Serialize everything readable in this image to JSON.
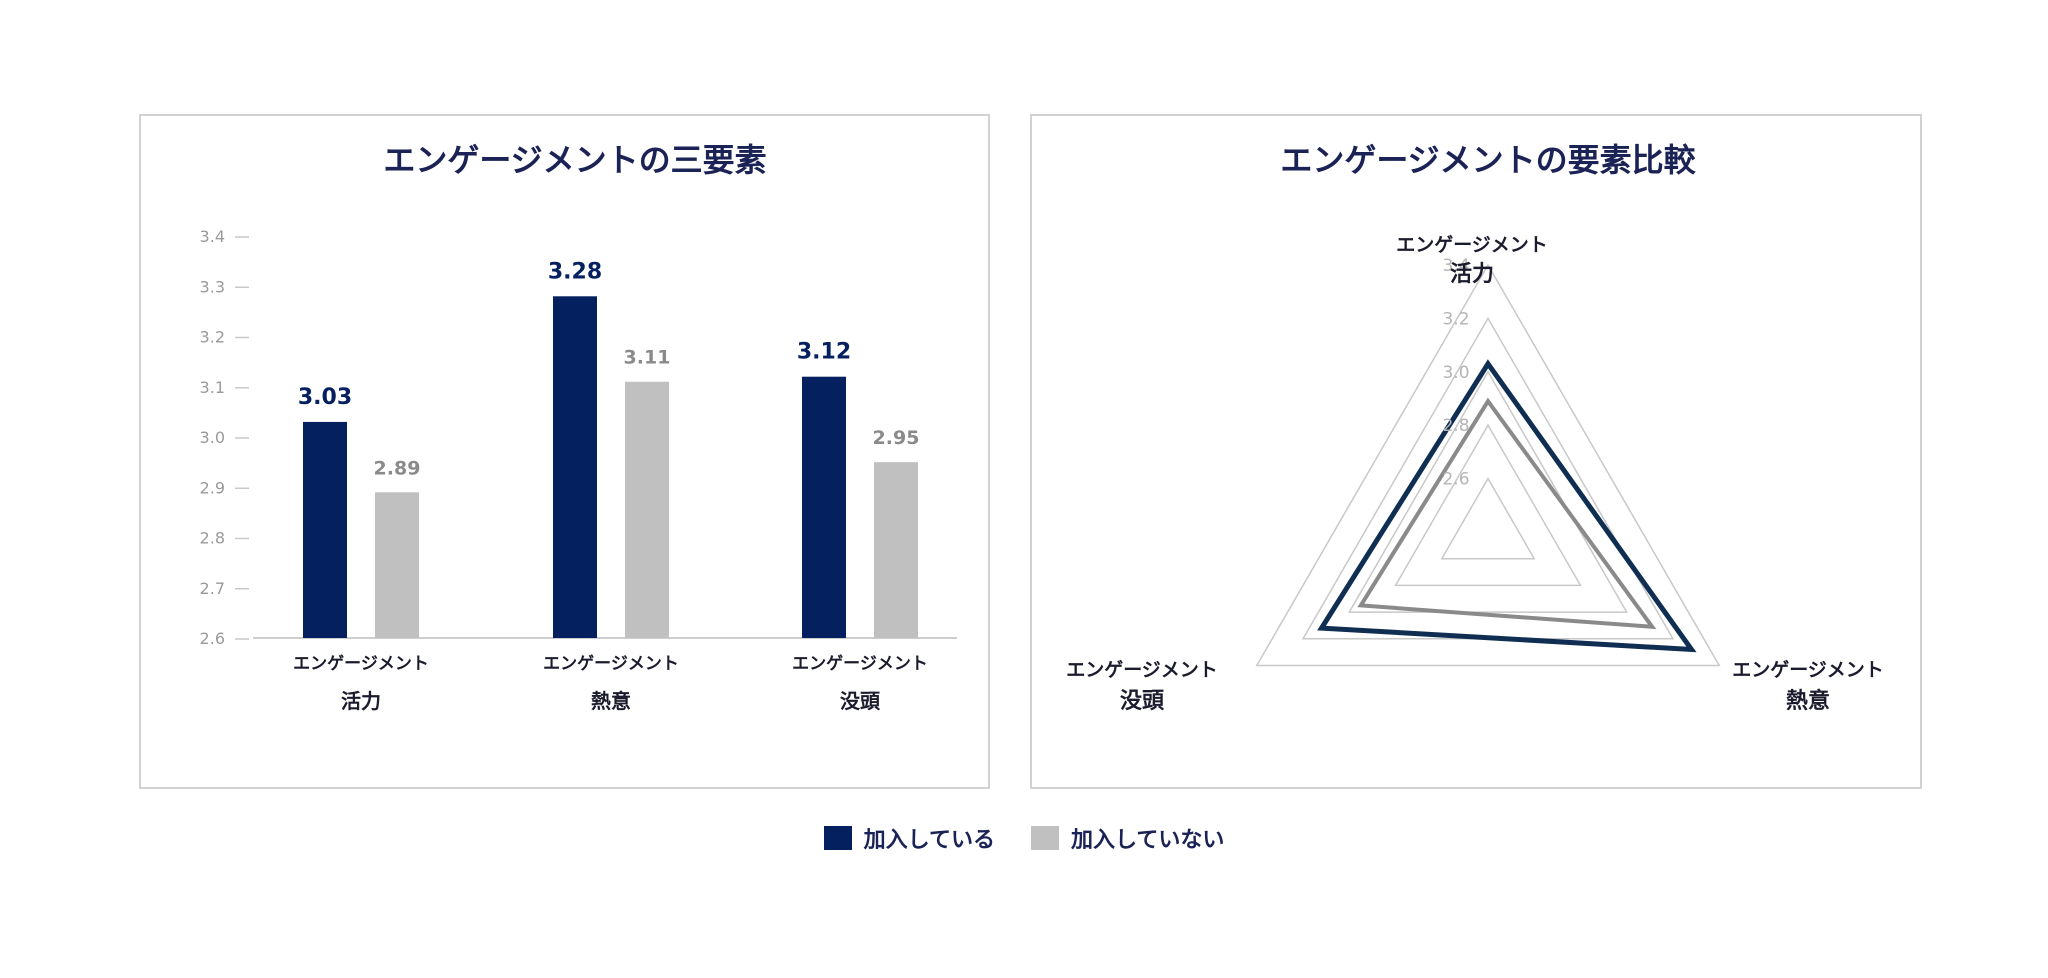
{
  "legend": {
    "series": [
      {
        "name": "加入している",
        "color": "#04205f"
      },
      {
        "name": "加入していない",
        "color": "#c0c0c0"
      }
    ]
  },
  "chart_data": [
    {
      "type": "bar",
      "title": "エンゲージメントの三要素",
      "categories": [
        {
          "line1": "エンゲージメント",
          "line2": "活力"
        },
        {
          "line1": "エンゲージメント",
          "line2": "熱意"
        },
        {
          "line1": "エンゲージメント",
          "line2": "没頭"
        }
      ],
      "series": [
        {
          "name": "加入している",
          "values": [
            3.03,
            3.28,
            3.12
          ],
          "labels": [
            "3.03",
            "3.28",
            "3.12"
          ],
          "color": "#04205f",
          "label_color": "#04205f"
        },
        {
          "name": "加入していない",
          "values": [
            2.89,
            3.11,
            2.95
          ],
          "labels": [
            "2.89",
            "3.11",
            "2.95"
          ],
          "color": "#c0c0c0",
          "label_color": "#8a8a8a"
        }
      ],
      "ylim": [
        2.6,
        3.4
      ],
      "yticks": [
        "2.6",
        "2.7",
        "2.8",
        "2.9",
        "3.0",
        "3.1",
        "3.2",
        "3.3",
        "3.4"
      ],
      "grid": false,
      "legend": "bottom"
    },
    {
      "type": "radar",
      "title": "エンゲージメントの要素比較",
      "axes": [
        {
          "line1": "エンゲージメント",
          "line2": "活力"
        },
        {
          "line1": "エンゲージメント",
          "line2": "熱意"
        },
        {
          "line1": "エンゲージメント",
          "line2": "没頭"
        }
      ],
      "series": [
        {
          "name": "加入している",
          "values": [
            3.03,
            3.28,
            3.12
          ],
          "color": "#0f2e52"
        },
        {
          "name": "加入していない",
          "values": [
            2.89,
            3.11,
            2.95
          ],
          "color": "#8a8a8a"
        }
      ],
      "rlim": [
        2.4,
        3.4
      ],
      "rticks": [
        "2.6",
        "2.8",
        "3.0",
        "3.2",
        "3.4"
      ],
      "grid_color": "#c8c8c8",
      "legend": "bottom"
    }
  ]
}
